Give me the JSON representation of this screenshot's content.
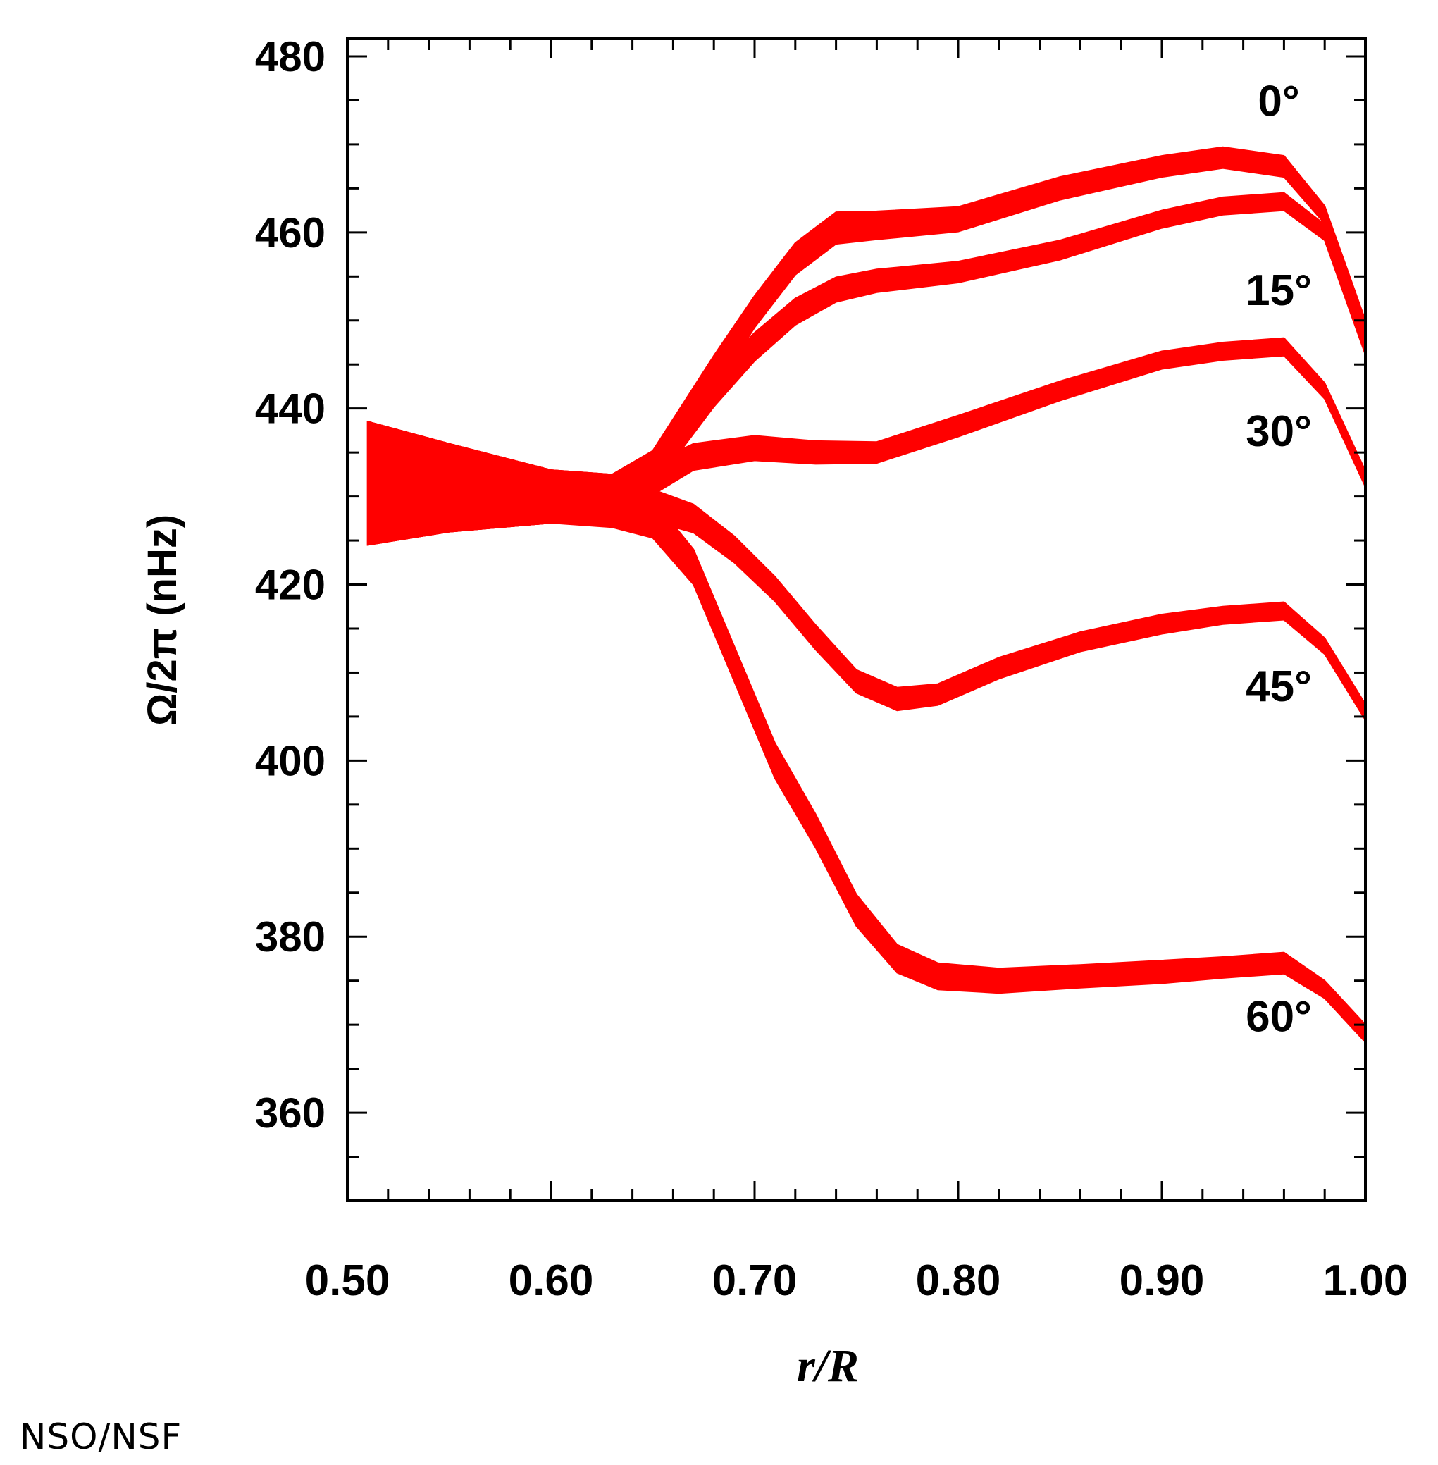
{
  "credit": "NSO/NSF",
  "chart_data": {
    "type": "line",
    "title": "",
    "xlabel": "r/R",
    "ylabel": "Ω/2π (nHz)",
    "xlim": [
      0.5,
      1.0
    ],
    "ylim": [
      350,
      482
    ],
    "xticks": [
      "0.50",
      "0.60",
      "0.70",
      "0.80",
      "0.90",
      "1.00"
    ],
    "yticks": [
      "360",
      "380",
      "400",
      "420",
      "440",
      "460",
      "480"
    ],
    "grid": false,
    "legend": "none",
    "series_color": "#ff0000",
    "series": [
      {
        "name": "0°",
        "x": [
          0.51,
          0.55,
          0.6,
          0.63,
          0.65,
          0.68,
          0.7,
          0.72,
          0.74,
          0.76,
          0.8,
          0.85,
          0.9,
          0.93,
          0.96,
          0.98,
          1.0
        ],
        "y": [
          431.5,
          431.0,
          430.0,
          430.0,
          433.0,
          444.0,
          451.0,
          457.0,
          460.5,
          460.8,
          461.5,
          465.0,
          467.5,
          468.5,
          467.5,
          462.0,
          449.0
        ],
        "band": [
          7,
          5,
          3,
          2.5,
          2.2,
          2.0,
          1.8,
          1.8,
          1.8,
          1.6,
          1.4,
          1.3,
          1.2,
          1.2,
          1.2,
          1.0,
          1.0
        ]
      },
      {
        "name": "15°",
        "x": [
          0.51,
          0.55,
          0.6,
          0.63,
          0.65,
          0.68,
          0.7,
          0.72,
          0.74,
          0.76,
          0.8,
          0.85,
          0.9,
          0.93,
          0.96,
          0.98,
          1.0
        ],
        "y": [
          431.5,
          431.0,
          430.0,
          430.0,
          433.0,
          442.0,
          447.0,
          451.0,
          453.5,
          454.5,
          455.5,
          458.0,
          461.5,
          463.0,
          463.5,
          460.0,
          447.0
        ],
        "band": [
          7,
          5,
          3,
          2.5,
          2.0,
          1.8,
          1.6,
          1.5,
          1.4,
          1.3,
          1.2,
          1.1,
          1.0,
          1.0,
          1.0,
          0.9,
          0.9
        ]
      },
      {
        "name": "30°",
        "x": [
          0.51,
          0.55,
          0.6,
          0.63,
          0.65,
          0.67,
          0.7,
          0.73,
          0.76,
          0.8,
          0.85,
          0.9,
          0.93,
          0.96,
          0.98,
          1.0
        ],
        "y": [
          431.5,
          431.0,
          430.0,
          430.0,
          432.0,
          434.5,
          435.5,
          435.0,
          435.0,
          438.0,
          442.0,
          445.5,
          446.5,
          447.0,
          442.0,
          432.0
        ],
        "band": [
          7,
          5,
          3,
          2.5,
          1.8,
          1.5,
          1.4,
          1.3,
          1.2,
          1.2,
          1.1,
          1.0,
          1.0,
          1.0,
          0.9,
          0.9
        ]
      },
      {
        "name": "45°",
        "x": [
          0.51,
          0.55,
          0.6,
          0.63,
          0.65,
          0.67,
          0.69,
          0.71,
          0.73,
          0.75,
          0.77,
          0.79,
          0.82,
          0.86,
          0.9,
          0.93,
          0.96,
          0.98,
          1.0
        ],
        "y": [
          431.5,
          431.0,
          430.0,
          429.5,
          429.0,
          427.5,
          424.0,
          419.5,
          414.0,
          409.0,
          407.0,
          407.5,
          410.5,
          413.5,
          415.5,
          416.5,
          417.0,
          413.0,
          405.5
        ],
        "band": [
          7,
          5,
          3,
          2.5,
          1.8,
          1.6,
          1.5,
          1.4,
          1.4,
          1.3,
          1.3,
          1.2,
          1.2,
          1.1,
          1.1,
          1.0,
          1.0,
          0.9,
          0.9
        ]
      },
      {
        "name": "60°",
        "x": [
          0.51,
          0.55,
          0.6,
          0.63,
          0.65,
          0.67,
          0.69,
          0.71,
          0.73,
          0.75,
          0.77,
          0.79,
          0.82,
          0.86,
          0.9,
          0.93,
          0.96,
          0.98,
          1.0
        ],
        "y": [
          431.5,
          431.0,
          430.0,
          429.0,
          427.5,
          422.0,
          411.0,
          400.0,
          392.0,
          383.0,
          377.5,
          375.5,
          375.0,
          375.5,
          376.0,
          376.5,
          377.0,
          374.0,
          369.0
        ],
        "band": [
          7,
          5,
          3,
          2.5,
          2.2,
          2.0,
          2.0,
          2.0,
          1.9,
          1.8,
          1.6,
          1.5,
          1.4,
          1.3,
          1.3,
          1.2,
          1.2,
          1.0,
          1.0
        ]
      }
    ]
  }
}
